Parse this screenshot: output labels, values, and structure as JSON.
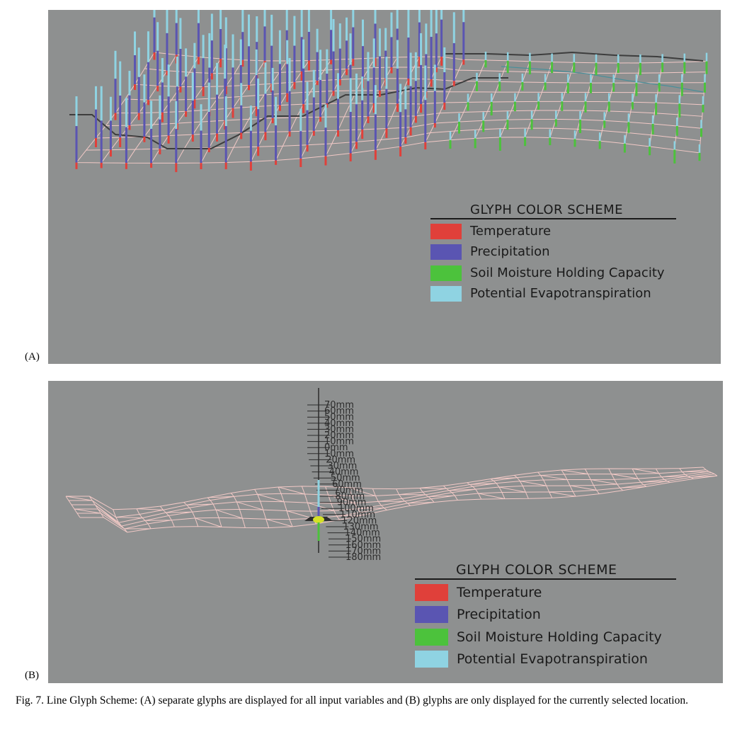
{
  "figure": {
    "panel_a_label": "(A)",
    "panel_b_label": "(B)",
    "caption": "Fig. 7.  Line Glyph Scheme: (A) separate glyphs are displayed for all input variables and (B) glyphs are only displayed for the currently selected location."
  },
  "legend": {
    "title": "GLYPH COLOR SCHEME",
    "items": [
      {
        "label": "Temperature",
        "color": "#e0403a"
      },
      {
        "label": "Precipitation",
        "color": "#5a55b2"
      },
      {
        "label": "Soil Moisture Holding Capacity",
        "color": "#4cc23c"
      },
      {
        "label": "Potential Evapotranspiration",
        "color": "#8fd3e2"
      }
    ]
  },
  "colors": {
    "panel_bg": "#8e9090",
    "mesh_line": "#f2c9c6",
    "boundary_line": "#3d3d3d",
    "axis_line": "#2b2b2b"
  },
  "axis_b": {
    "ticks": [
      "70mm",
      "60mm",
      "50mm",
      "40mm",
      "30mm",
      "20mm",
      "10mm",
      "0mm",
      "10mm",
      "20mm",
      "30mm",
      "40mm",
      "50mm",
      "60mm",
      "70mm",
      "80mm",
      "90mm",
      "100mm",
      "110mm",
      "120mm",
      "130mm",
      "140mm",
      "150mm",
      "160mm",
      "170mm",
      "180mm"
    ]
  }
}
